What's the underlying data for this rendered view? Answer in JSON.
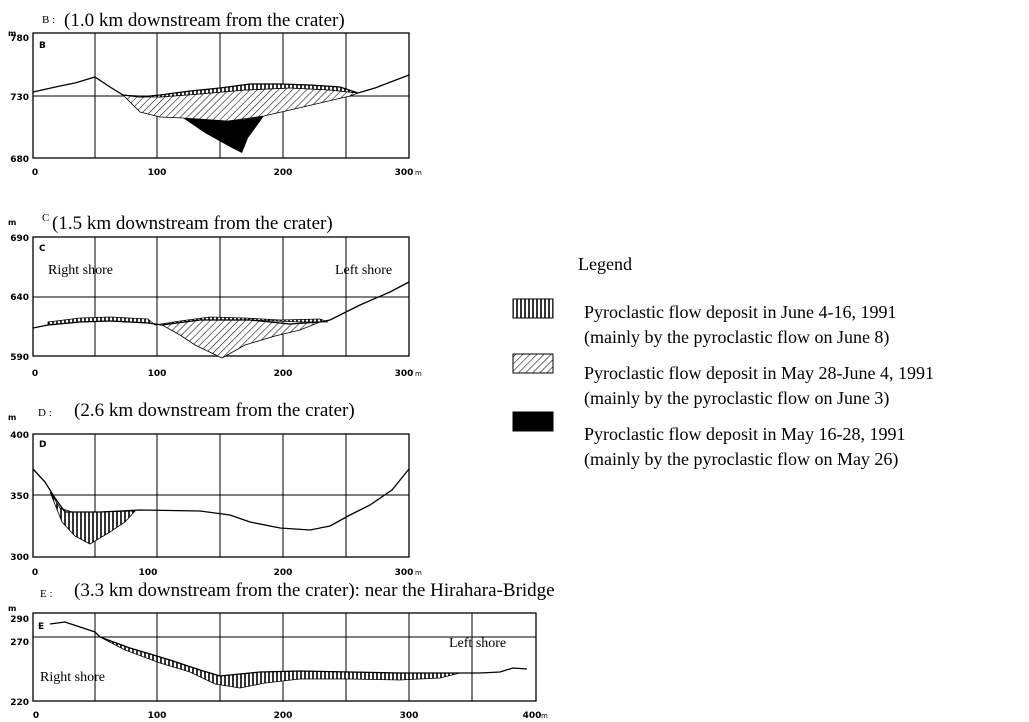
{
  "sections": [
    {
      "id": "B",
      "letter_heading": "B :",
      "title": "(1.0 km downstream from the crater)",
      "panel_letter": "B",
      "unit": "m",
      "y_ticks": [
        "780",
        "730",
        "680"
      ],
      "x_ticks": [
        "0",
        "100",
        "200",
        "300",
        "m"
      ],
      "y_range": [
        680,
        780
      ],
      "x_range": [
        0,
        300
      ]
    },
    {
      "id": "C",
      "letter_heading": "C",
      "title": "(1.5 km downstream from the crater)",
      "panel_letter": "C",
      "unit": "m",
      "y_ticks": [
        "690",
        "640",
        "590"
      ],
      "x_ticks": [
        "0",
        "100",
        "200",
        "300",
        "m"
      ],
      "y_range": [
        590,
        690
      ],
      "x_range": [
        0,
        300
      ],
      "right_shore": "Right shore",
      "left_shore": "Left shore"
    },
    {
      "id": "D",
      "letter_heading": "D :",
      "title": "(2.6 km downstream from the crater)",
      "panel_letter": "D",
      "unit": "m",
      "y_ticks": [
        "400",
        "350",
        "300"
      ],
      "x_ticks": [
        "0",
        "100",
        "200",
        "300",
        "m"
      ],
      "y_range": [
        300,
        400
      ],
      "x_range": [
        0,
        300
      ]
    },
    {
      "id": "E",
      "letter_heading": "E :",
      "title": "(3.3 km downstream from the crater): near the Hirahara-Bridge",
      "panel_letter": "E",
      "unit": "m",
      "y_ticks": [
        "290",
        "270",
        "220"
      ],
      "x_ticks": [
        "0",
        "100",
        "200",
        "300",
        "400",
        "m"
      ],
      "y_range": [
        220,
        290
      ],
      "x_range": [
        0,
        400
      ],
      "right_shore": "Right shore",
      "left_shore": "Left shore"
    }
  ],
  "legend": {
    "title": "Legend",
    "items": [
      {
        "pattern": "vertical-hatch",
        "line1": "Pyroclastic flow deposit in June 4-16, 1991",
        "line2": "(mainly by the pyroclastic flow on June 8)"
      },
      {
        "pattern": "diagonal-hatch",
        "line1": "Pyroclastic flow deposit in May 28-June 4, 1991",
        "line2": "(mainly by the pyroclastic flow on June 3)"
      },
      {
        "pattern": "solid-black",
        "line1": "Pyroclastic flow deposit in May 16-28, 1991",
        "line2": "(mainly by the pyroclastic flow on May 26)"
      }
    ]
  }
}
